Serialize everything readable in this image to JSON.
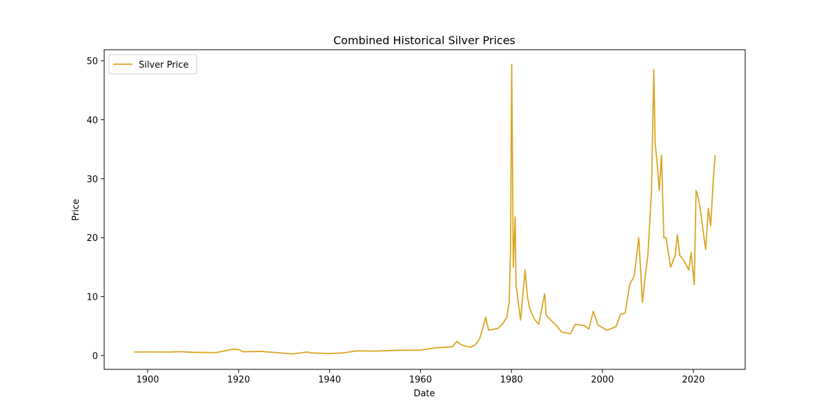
{
  "chart_data": {
    "type": "line",
    "title": "Combined Historical Silver Prices",
    "x_label": "Date",
    "y_label": "Price",
    "series": [
      {
        "name": "Silver Price",
        "color": "#daa520",
        "x": [
          1897,
          1900,
          1905,
          1907,
          1910,
          1915,
          1917,
          1919,
          1920,
          1921,
          1925,
          1930,
          1932,
          1935,
          1936,
          1940,
          1943,
          1946,
          1950,
          1955,
          1960,
          1963,
          1967,
          1968,
          1969,
          1971,
          1972,
          1973,
          1974,
          1974.3,
          1975,
          1977,
          1978,
          1979,
          1979.5,
          1979.8,
          1980.05,
          1980.2,
          1980.4,
          1980.8,
          1981,
          1982,
          1983,
          1983.5,
          1984,
          1985,
          1986,
          1987.3,
          1987.6,
          1988,
          1990,
          1991,
          1993,
          1994,
          1996,
          1997,
          1998,
          1999,
          2001,
          2002,
          2003,
          2004,
          2005,
          2006,
          2007,
          2008,
          2008.8,
          2009.5,
          2010,
          2010.8,
          2011.3,
          2011.6,
          2012,
          2012.5,
          2013,
          2013.5,
          2014,
          2015,
          2016,
          2016.5,
          2017,
          2018,
          2019,
          2019.5,
          2020.2,
          2020.6,
          2021,
          2021.5,
          2022,
          2022.7,
          2023.3,
          2023.8,
          2024.4,
          2024.8
        ],
        "values": [
          0.6,
          0.62,
          0.6,
          0.66,
          0.55,
          0.5,
          0.8,
          1.1,
          1.0,
          0.65,
          0.7,
          0.4,
          0.28,
          0.6,
          0.45,
          0.35,
          0.45,
          0.8,
          0.75,
          0.9,
          0.91,
          1.29,
          1.5,
          2.4,
          1.8,
          1.4,
          1.8,
          2.8,
          5.5,
          6.5,
          4.3,
          4.6,
          5.3,
          6.5,
          9.0,
          18,
          49.4,
          36,
          15,
          23.5,
          12,
          6.0,
          14.5,
          10,
          8,
          6.2,
          5.3,
          10.5,
          7,
          6.5,
          5.0,
          4.0,
          3.7,
          5.3,
          5.1,
          4.5,
          7.5,
          5.2,
          4.3,
          4.6,
          4.9,
          7.0,
          7.2,
          12,
          13.5,
          20,
          9,
          14,
          17,
          28,
          48.5,
          36,
          33,
          28,
          34,
          20,
          20,
          15,
          17,
          20.5,
          17,
          16,
          14.5,
          17.5,
          12,
          28,
          27,
          25,
          22,
          18,
          25,
          22,
          30,
          34
        ]
      }
    ],
    "xlim": [
      1890.44,
      2031.4
    ],
    "xticks": [
      1900,
      1920,
      1940,
      1960,
      1980,
      2000,
      2020
    ],
    "ylim": [
      -2.34,
      51.87
    ],
    "yticks": [
      0,
      10,
      20,
      30,
      40,
      50
    ],
    "legend": "upper left"
  }
}
